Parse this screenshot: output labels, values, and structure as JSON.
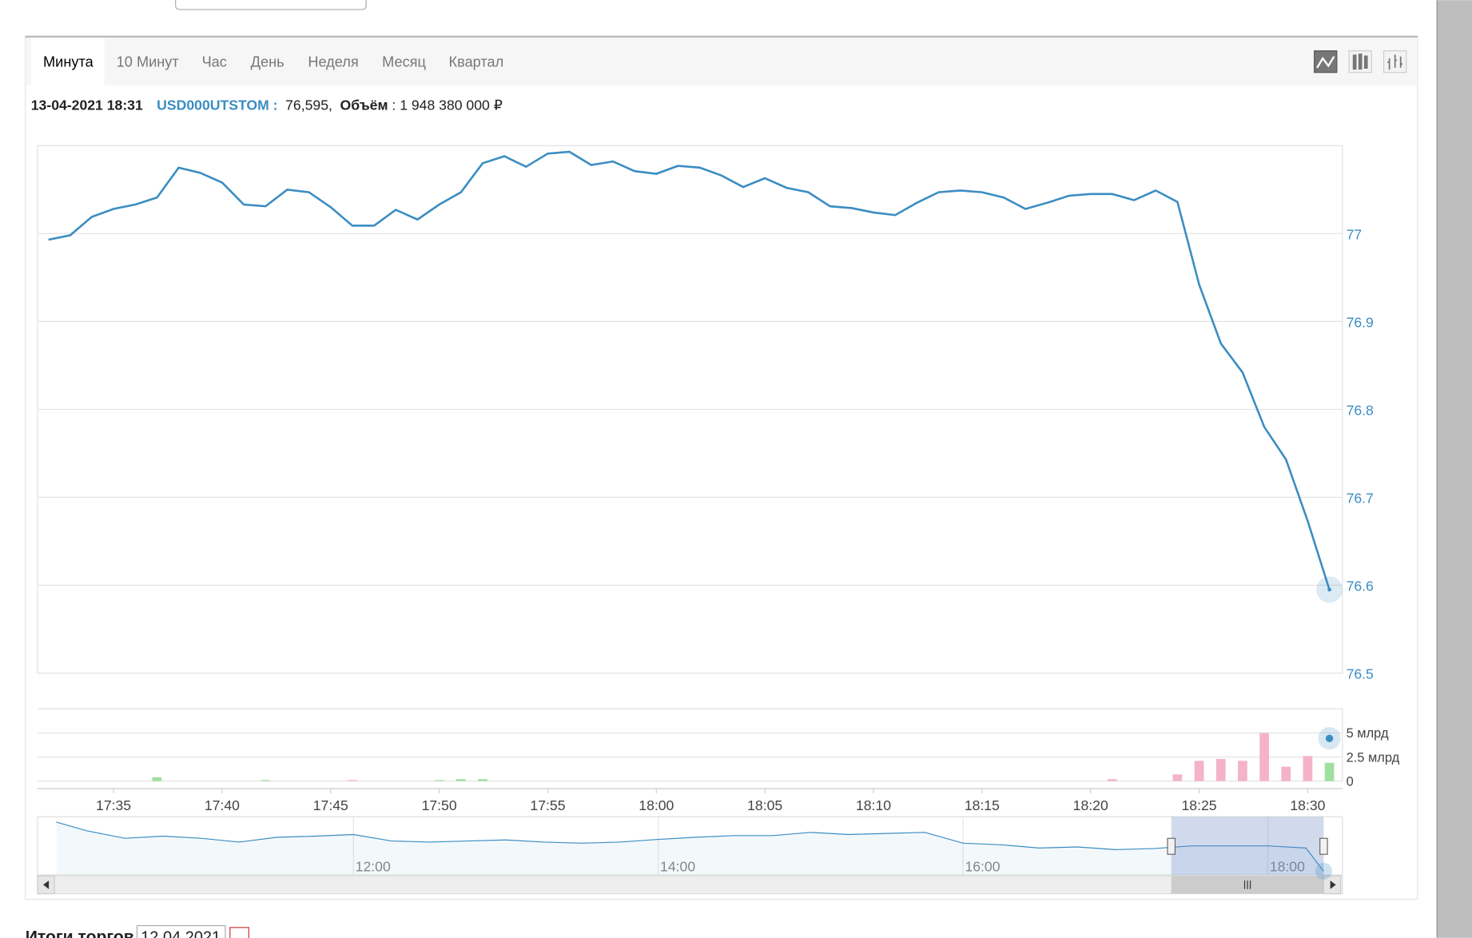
{
  "tabs": [
    "Минута",
    "10 Минут",
    "Час",
    "День",
    "Неделя",
    "Месяц",
    "Квартал"
  ],
  "info": {
    "datetime": "13-04-2021 18:31",
    "ticker": "USD000UTSTOM :",
    "price": "76,595,",
    "volume_label": "Объём",
    "volume": ": 1 948 380 000 ₽"
  },
  "footer": {
    "title": "Итоги торгов",
    "date": "12.04.2021"
  },
  "chart_data": [
    {
      "type": "line",
      "color": "#3b8dc2",
      "grid": true,
      "x": [
        "17:32",
        "17:33",
        "17:34",
        "17:35",
        "17:36",
        "17:37",
        "17:38",
        "17:39",
        "17:40",
        "17:41",
        "17:42",
        "17:43",
        "17:44",
        "17:45",
        "17:46",
        "17:47",
        "17:48",
        "17:49",
        "17:50",
        "17:51",
        "17:52",
        "17:53",
        "17:54",
        "17:55",
        "17:56",
        "17:57",
        "17:58",
        "17:59",
        "18:00",
        "18:01",
        "18:02",
        "18:03",
        "18:04",
        "18:05",
        "18:06",
        "18:07",
        "18:08",
        "18:09",
        "18:10",
        "18:11",
        "18:12",
        "18:13",
        "18:14",
        "18:15",
        "18:16",
        "18:17",
        "18:18",
        "18:19",
        "18:20",
        "18:21",
        "18:22",
        "18:23",
        "18:24",
        "18:25",
        "18:26",
        "18:27",
        "18:28",
        "18:29",
        "18:30",
        "18:31"
      ],
      "values": [
        76.993,
        76.998,
        77.019,
        77.028,
        77.033,
        77.041,
        77.075,
        77.069,
        77.058,
        77.033,
        77.031,
        77.05,
        77.047,
        77.03,
        77.009,
        77.009,
        77.027,
        77.016,
        77.033,
        77.047,
        77.08,
        77.088,
        77.076,
        77.091,
        77.093,
        77.078,
        77.082,
        77.071,
        77.068,
        77.077,
        77.075,
        77.066,
        77.053,
        77.063,
        77.052,
        77.047,
        77.031,
        77.029,
        77.024,
        77.021,
        77.035,
        77.047,
        77.049,
        77.047,
        77.041,
        77.028,
        77.035,
        77.043,
        77.045,
        77.045,
        77.038,
        77.049,
        77.036,
        76.942,
        76.875,
        76.842,
        76.78,
        76.743,
        76.673,
        76.595
      ],
      "xlim": [
        "17:31:30",
        "18:31:36"
      ],
      "ylim": [
        76.5,
        77.1
      ],
      "yticks": [
        76.5,
        76.6,
        76.7,
        76.8,
        76.9,
        77
      ]
    },
    {
      "type": "bar",
      "grid": true,
      "x": [
        "17:37",
        "17:42",
        "17:46",
        "17:50",
        "17:51",
        "17:52",
        "18:21",
        "18:24",
        "18:25",
        "18:26",
        "18:27",
        "18:28",
        "18:29",
        "18:30",
        "18:31"
      ],
      "values": [
        0.4,
        0.1,
        0.1,
        0.1,
        0.2,
        0.2,
        0.2,
        0.7,
        2.1,
        2.3,
        2.1,
        5,
        1.5,
        2.6,
        1.9
      ],
      "colors": [
        "#9fe09f",
        "#9fe09f",
        "#f5b3c8",
        "#9fe09f",
        "#9fe09f",
        "#9fe09f",
        "#f5b3c8",
        "#f5b3c8",
        "#f5b3c8",
        "#f5b3c8",
        "#f5b3c8",
        "#f5b3c8",
        "#f5b3c8",
        "#f5b3c8",
        "#9fe09f"
      ],
      "xlim": [
        "17:31:30",
        "18:31:36"
      ],
      "xticks": [
        "17:35",
        "17:40",
        "17:45",
        "17:50",
        "17:55",
        "18:00",
        "18:05",
        "18:10",
        "18:15",
        "18:20",
        "18:25",
        "18:30"
      ],
      "ylim": [
        0,
        7.5
      ],
      "yticks": [
        0,
        {
          "value": 2.5,
          "label": "2.5 млрд"
        },
        {
          "value": 5,
          "label": "5 млрд"
        }
      ]
    },
    {
      "type": "area",
      "color": "#3b8dc2",
      "x": [
        "10:03",
        "10:15",
        "10:30",
        "10:45",
        "11:00",
        "11:15",
        "11:30",
        "11:45",
        "12:00",
        "12:15",
        "12:30",
        "12:45",
        "13:00",
        "13:15",
        "13:30",
        "13:45",
        "14:00",
        "14:15",
        "14:30",
        "14:45",
        "15:00",
        "15:15",
        "15:30",
        "15:45",
        "16:00",
        "16:15",
        "16:30",
        "16:45",
        "17:00",
        "17:15",
        "17:30",
        "17:45",
        "18:00",
        "18:15",
        "18:22"
      ],
      "values": [
        77.51,
        77.35,
        77.21,
        77.25,
        77.21,
        77.14,
        77.23,
        77.25,
        77.28,
        77.16,
        77.14,
        77.16,
        77.18,
        77.14,
        77.12,
        77.14,
        77.19,
        77.23,
        77.26,
        77.26,
        77.32,
        77.28,
        77.3,
        77.32,
        77.12,
        77.09,
        77.03,
        77.05,
        77,
        77.02,
        77.07,
        77.07,
        77.07,
        77.03,
        76.6
      ],
      "xlim": [
        "10:03",
        "18:22"
      ],
      "ylim": [
        76.53,
        77.61
      ],
      "xticks": [
        "12:00",
        "14:00",
        "16:00",
        "18:00"
      ],
      "selection": [
        "17:22",
        "18:22"
      ]
    }
  ]
}
